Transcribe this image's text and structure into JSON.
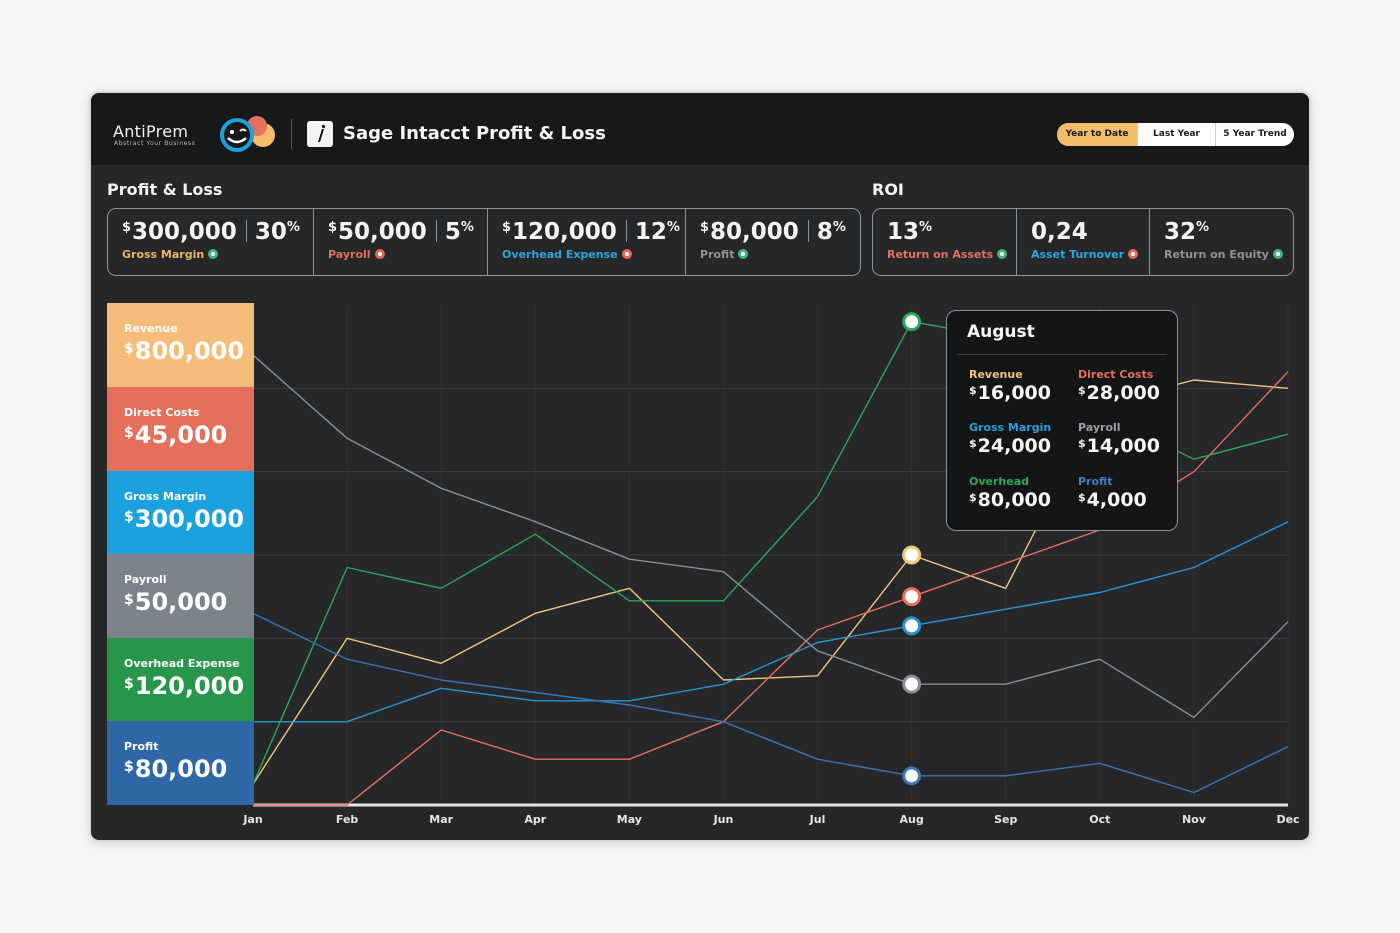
{
  "brand": {
    "name": "AntiPrem",
    "tagline": "Abstract Your Business"
  },
  "app": {
    "title": "Sage Intacct Profit & Loss"
  },
  "period_toggle": {
    "options": [
      "Year to Date",
      "Last Year",
      "5 Year Trend"
    ],
    "selected": "Year to Date"
  },
  "profit_loss": {
    "title": "Profit & Loss",
    "kpis": [
      {
        "currency": "$",
        "value": "300,000",
        "pct": "30",
        "pct_sign": "%",
        "label": "Gross Margin",
        "label_color": "#e9b66a",
        "trend": "up"
      },
      {
        "currency": "$",
        "value": "50,000",
        "pct": "5",
        "pct_sign": "%",
        "label": "Payroll",
        "label_color": "#e0705f",
        "trend": "down"
      },
      {
        "currency": "$",
        "value": "120,000",
        "pct": "12",
        "pct_sign": "%",
        "label": "Overhead Expense",
        "label_color": "#2ea4de",
        "trend": "down"
      },
      {
        "currency": "$",
        "value": "80,000",
        "pct": "8",
        "pct_sign": "%",
        "label": "Profit",
        "label_color": "#8e9297",
        "trend": "up"
      }
    ]
  },
  "roi": {
    "title": "ROI",
    "kpis": [
      {
        "value": "13",
        "pct_sign": "%",
        "label": "Return on Assets",
        "label_color": "#e0705f",
        "trend": "up"
      },
      {
        "value": "0,24",
        "pct_sign": "",
        "label": "Asset Turnover",
        "label_color": "#2ea4de",
        "trend": "down"
      },
      {
        "value": "32",
        "pct_sign": "%",
        "label": "Return on Equity",
        "label_color": "#8e9297",
        "trend": "up"
      }
    ]
  },
  "legend_tiles": [
    {
      "label": "Revenue",
      "currency": "$",
      "value": "800,000",
      "color": "#f5bd79"
    },
    {
      "label": "Direct Costs",
      "currency": "$",
      "value": "45,000",
      "color": "#e4705c"
    },
    {
      "label": "Gross Margin",
      "currency": "$",
      "value": "300,000",
      "color": "#1aa1de"
    },
    {
      "label": "Payroll",
      "currency": "$",
      "value": "50,000",
      "color": "#7c838b"
    },
    {
      "label": "Overhead Expense",
      "currency": "$",
      "value": "120,000",
      "color": "#27954a"
    },
    {
      "label": "Profit",
      "currency": "$",
      "value": "80,000",
      "color": "#2f67a6"
    }
  ],
  "chart_data": {
    "type": "line",
    "categories": [
      "Jan",
      "Feb",
      "Mar",
      "Apr",
      "May",
      "Jun",
      "Jul",
      "Aug",
      "Sep",
      "Oct",
      "Nov",
      "Dec"
    ],
    "ylim": [
      0,
      6
    ],
    "grid": true,
    "highlight_index": 7,
    "series": [
      {
        "name": "Revenue",
        "color": "#f0c57c",
        "values": [
          0.25,
          2.0,
          1.7,
          2.3,
          2.6,
          1.5,
          1.55,
          3.0,
          2.6,
          4.8,
          5.1,
          5.0
        ]
      },
      {
        "name": "Direct Costs",
        "color": "#e4705c",
        "values": [
          0,
          0,
          0.9,
          0.55,
          0.55,
          1.0,
          2.1,
          2.5,
          2.9,
          3.3,
          4.0,
          5.2
        ]
      },
      {
        "name": "Gross Margin",
        "color": "#2a93d2",
        "values": [
          1.0,
          1.0,
          1.4,
          1.25,
          1.25,
          1.45,
          1.95,
          2.15,
          2.35,
          2.55,
          2.85,
          3.4
        ]
      },
      {
        "name": "Payroll",
        "color": "#8a8e94",
        "values": [
          5.4,
          4.4,
          3.8,
          3.4,
          2.95,
          2.8,
          1.85,
          1.45,
          1.45,
          1.75,
          1.05,
          2.2
        ]
      },
      {
        "name": "Overhead Expense",
        "color": "#2aa75a",
        "values": [
          0.25,
          2.85,
          2.6,
          3.25,
          2.45,
          2.45,
          3.7,
          5.8,
          5.6,
          4.7,
          4.15,
          4.45
        ]
      },
      {
        "name": "Profit",
        "color": "#3a74b7",
        "values": [
          2.3,
          1.75,
          1.5,
          1.35,
          1.2,
          1.0,
          0.55,
          0.35,
          0.35,
          0.5,
          0.15,
          0.7
        ]
      }
    ]
  },
  "tooltip": {
    "title": "August",
    "items": [
      {
        "label": "Revenue",
        "currency": "$",
        "value": "16,000",
        "color": "#f0c57c"
      },
      {
        "label": "Direct Costs",
        "currency": "$",
        "value": "28,000",
        "color": "#e4705c"
      },
      {
        "label": "Gross Margin",
        "currency": "$",
        "value": "24,000",
        "color": "#2a9fe0"
      },
      {
        "label": "Payroll",
        "currency": "$",
        "value": "14,000",
        "color": "#9ca0a6"
      },
      {
        "label": "Overhead",
        "currency": "$",
        "value": "80,000",
        "color": "#33a85c"
      },
      {
        "label": "Profit",
        "currency": "$",
        "value": "4,000",
        "color": "#3f7fc6"
      }
    ]
  }
}
